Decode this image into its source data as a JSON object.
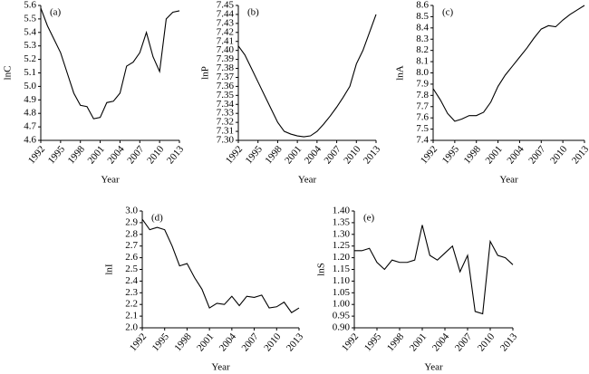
{
  "chart_data": [
    {
      "type": "line",
      "title": "(a)",
      "x_label": "Year",
      "y_label": "lnC",
      "color": "#000000",
      "x": [
        1992,
        1993,
        1994,
        1995,
        1996,
        1997,
        1998,
        1999,
        2000,
        2001,
        2002,
        2003,
        2004,
        2005,
        2006,
        2007,
        2008,
        2009,
        2010,
        2011,
        2012,
        2013
      ],
      "values": [
        5.58,
        5.45,
        5.35,
        5.25,
        5.1,
        4.95,
        4.86,
        4.85,
        4.76,
        4.77,
        4.88,
        4.89,
        4.95,
        5.15,
        5.18,
        5.25,
        5.4,
        5.22,
        5.11,
        5.5,
        5.55,
        5.56
      ],
      "xlim": [
        1992,
        2013
      ],
      "xticks": [
        1992,
        1995,
        1998,
        2001,
        2004,
        2007,
        2010,
        2013
      ],
      "ylim": [
        4.6,
        5.6
      ],
      "yticks": [
        4.6,
        4.7,
        4.8,
        4.9,
        {
          "value": 5,
          "label": "5.0"
        },
        5.1,
        5.2,
        5.3,
        5.4,
        5.5,
        5.6
      ]
    },
    {
      "type": "line",
      "title": "(b)",
      "x_label": "Year",
      "y_label": "lnP",
      "color": "#000000",
      "x": [
        1992,
        1993,
        1994,
        1995,
        1996,
        1997,
        1998,
        1999,
        2000,
        2001,
        2002,
        2003,
        2004,
        2005,
        2006,
        2007,
        2008,
        2009,
        2010,
        2011,
        2012,
        2013
      ],
      "values": [
        7.405,
        7.395,
        7.38,
        7.365,
        7.35,
        7.335,
        7.32,
        7.31,
        7.307,
        7.305,
        7.304,
        7.305,
        7.31,
        7.318,
        7.327,
        7.337,
        7.348,
        7.36,
        7.385,
        7.4,
        7.42,
        7.44
      ],
      "xlim": [
        1992,
        2013
      ],
      "xticks": [
        1992,
        1995,
        1998,
        2001,
        2004,
        2007,
        2010,
        2013
      ],
      "ylim": [
        7.3,
        7.45
      ],
      "yticks": [
        {
          "value": 7.3,
          "label": "7.30"
        },
        7.31,
        7.32,
        7.33,
        7.34,
        7.35,
        7.36,
        7.37,
        7.38,
        7.39,
        {
          "value": 7.4,
          "label": "7.40"
        },
        7.41,
        7.42,
        7.43,
        7.44,
        7.45
      ]
    },
    {
      "type": "line",
      "title": "(c)",
      "x_label": "Year",
      "y_label": "lnA",
      "color": "#000000",
      "x": [
        1992,
        1993,
        1994,
        1995,
        1996,
        1997,
        1998,
        1999,
        2000,
        2001,
        2002,
        2003,
        2004,
        2005,
        2006,
        2007,
        2008,
        2009,
        2010,
        2011,
        2012,
        2013
      ],
      "values": [
        7.86,
        7.76,
        7.64,
        7.57,
        7.59,
        7.62,
        7.62,
        7.65,
        7.74,
        7.88,
        7.98,
        8.06,
        8.14,
        8.22,
        8.31,
        8.39,
        8.42,
        8.41,
        8.47,
        8.52,
        8.56,
        8.6
      ],
      "xlim": [
        1992,
        2013
      ],
      "xticks": [
        1992,
        1995,
        1998,
        2001,
        2004,
        2007,
        2010,
        2013
      ],
      "ylim": [
        7.4,
        8.6
      ],
      "yticks": [
        7.4,
        7.5,
        7.6,
        7.7,
        7.8,
        7.9,
        {
          "value": 8,
          "label": "8.0"
        },
        8.1,
        8.2,
        8.3,
        8.4,
        8.5,
        8.6
      ]
    },
    {
      "type": "line",
      "title": "(d)",
      "x_label": "Year",
      "y_label": "lnI",
      "color": "#000000",
      "x": [
        1992,
        1993,
        1994,
        1995,
        1996,
        1997,
        1998,
        1999,
        2000,
        2001,
        2002,
        2003,
        2004,
        2005,
        2006,
        2007,
        2008,
        2009,
        2010,
        2011,
        2012,
        2013
      ],
      "values": [
        2.93,
        2.84,
        2.86,
        2.84,
        2.7,
        2.53,
        2.55,
        2.43,
        2.33,
        2.17,
        2.21,
        2.2,
        2.27,
        2.19,
        2.27,
        2.26,
        2.28,
        2.17,
        2.18,
        2.22,
        2.13,
        2.17
      ],
      "xlim": [
        1992,
        2013
      ],
      "xticks": [
        1992,
        1995,
        1998,
        2001,
        2004,
        2007,
        2010,
        2013
      ],
      "ylim": [
        2,
        3
      ],
      "yticks": [
        {
          "value": 2,
          "label": "2.0"
        },
        2.1,
        2.2,
        2.3,
        2.4,
        2.5,
        2.6,
        2.7,
        2.8,
        2.9,
        {
          "value": 3,
          "label": "3.0"
        }
      ]
    },
    {
      "type": "line",
      "title": "(e)",
      "x_label": "Year",
      "y_label": "lnS",
      "color": "#000000",
      "x": [
        1992,
        1993,
        1994,
        1995,
        1996,
        1997,
        1998,
        1999,
        2000,
        2001,
        2002,
        2003,
        2004,
        2005,
        2006,
        2007,
        2008,
        2009,
        2010,
        2011,
        2012,
        2013
      ],
      "values": [
        1.23,
        1.23,
        1.24,
        1.18,
        1.15,
        1.19,
        1.18,
        1.18,
        1.19,
        1.34,
        1.21,
        1.19,
        1.22,
        1.25,
        1.14,
        1.21,
        0.97,
        0.96,
        1.27,
        1.21,
        1.2,
        1.17
      ],
      "xlim": [
        1992,
        2013
      ],
      "xticks": [
        1992,
        1995,
        1998,
        2001,
        2004,
        2007,
        2010,
        2013
      ],
      "ylim": [
        0.9,
        1.4
      ],
      "yticks": [
        {
          "value": 0.9,
          "label": "0.90"
        },
        0.95,
        {
          "value": 1,
          "label": "1.00"
        },
        1.05,
        {
          "value": 1.1,
          "label": "1.10"
        },
        1.15,
        {
          "value": 1.2,
          "label": "1.20"
        },
        1.25,
        {
          "value": 1.3,
          "label": "1.30"
        },
        1.35,
        {
          "value": 1.4,
          "label": "1.40"
        }
      ]
    }
  ]
}
